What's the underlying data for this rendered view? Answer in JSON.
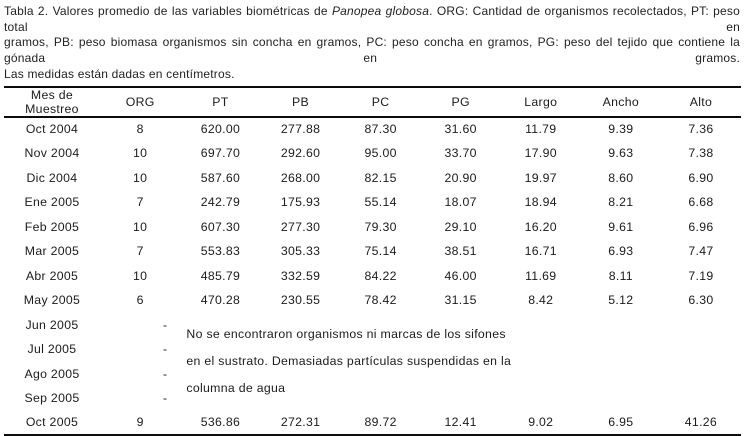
{
  "caption": {
    "line1_prefix": "Tabla 2. Valores promedio de las variables biométricas de ",
    "line1_species": "Panopea globosa",
    "line1_rest": ". ORG: Cantidad de organismos recolectados, PT: peso total en",
    "line2": "gramos, PB: peso biomasa organismos sin concha en gramos, PC: peso concha en gramos, PG: peso del tejido que contiene la gónada en gramos.",
    "line3": "Las medidas están dadas en centímetros."
  },
  "table": {
    "headers": [
      "Mes de Muestreo",
      "ORG",
      "PT",
      "PB",
      "PC",
      "PG",
      "Largo",
      "Ancho",
      "Alto"
    ],
    "rows": [
      [
        "Oct 2004",
        "8",
        "620.00",
        "277.88",
        "87.30",
        "31.60",
        "11.79",
        "9.39",
        "7.36"
      ],
      [
        "Nov 2004",
        "10",
        "697.70",
        "292.60",
        "95.00",
        "33.70",
        "17.90",
        "9.63",
        "7.38"
      ],
      [
        "Dic 2004",
        "10",
        "587.60",
        "268.00",
        "82.15",
        "20.90",
        "19.97",
        "8.60",
        "6.90"
      ],
      [
        "Ene 2005",
        "7",
        "242.79",
        "175.93",
        "55.14",
        "18.07",
        "18.94",
        "8.21",
        "6.68"
      ],
      [
        "Feb 2005",
        "10",
        "607.30",
        "277.30",
        "79.30",
        "29.10",
        "16.20",
        "9.61",
        "6.96"
      ],
      [
        "Mar 2005",
        "7",
        "553.83",
        "305.33",
        "75.14",
        "38.51",
        "16.71",
        "6.93",
        "7.47"
      ],
      [
        "Abr 2005",
        "10",
        "485.79",
        "332.59",
        "84.22",
        "46.00",
        "11.69",
        "8.11",
        "7.19"
      ],
      [
        "May 2005",
        "6",
        "470.28",
        "230.55",
        "78.42",
        "31.15",
        "8.42",
        "5.12",
        "6.30"
      ]
    ],
    "empty_rows": [
      [
        "Jun 2005",
        "-"
      ],
      [
        "Jul 2005",
        "-"
      ],
      [
        "Ago 2005",
        "-"
      ],
      [
        "Sep 2005",
        "-"
      ]
    ],
    "note_lines": [
      "No se encontraron organismos ni marcas de los sifones",
      "en el sustrato. Demasiadas partículas suspendidas en la",
      "columna de agua"
    ],
    "final_row": [
      "Oct 2005",
      "9",
      "536.86",
      "272.31",
      "89.72",
      "12.41",
      "9.02",
      "6.95",
      "41.26"
    ]
  }
}
